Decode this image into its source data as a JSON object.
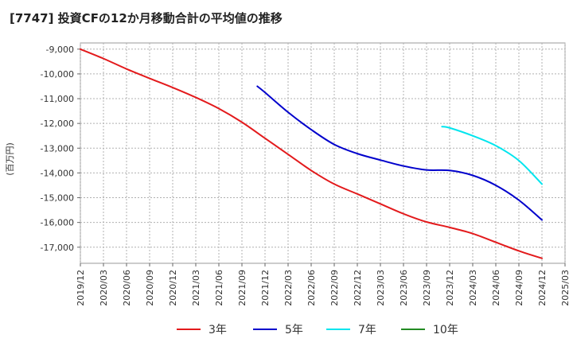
{
  "chart_data": {
    "type": "line",
    "title": "[7747]  投資CFの12か月移動合計の平均値の推移",
    "ylabel": "(百万円)",
    "xlabel": "",
    "ylim": [
      -17650,
      -8750
    ],
    "yticks": [
      -9000,
      -10000,
      -11000,
      -12000,
      -13000,
      -14000,
      -15000,
      -16000,
      -17000
    ],
    "ytick_labels": [
      "-9,000",
      "-10,000",
      "-11,000",
      "-12,000",
      "-13,000",
      "-14,000",
      "-15,000",
      "-16,000",
      "-17,000"
    ],
    "x_ticks": [
      "2019/12",
      "2020/03",
      "2020/06",
      "2020/09",
      "2020/12",
      "2021/03",
      "2021/06",
      "2021/09",
      "2021/12",
      "2022/03",
      "2022/06",
      "2022/09",
      "2022/12",
      "2023/03",
      "2023/06",
      "2023/09",
      "2023/12",
      "2024/03",
      "2024/06",
      "2024/09",
      "2024/12",
      "2025/03"
    ],
    "grid": true,
    "legend_position": "bottom",
    "series": [
      {
        "name": "3年",
        "color": "#e31a1c",
        "points": [
          [
            "2019/12",
            -9000
          ],
          [
            "2020/03",
            -9380
          ],
          [
            "2020/06",
            -9800
          ],
          [
            "2020/09",
            -10180
          ],
          [
            "2020/12",
            -10550
          ],
          [
            "2021/03",
            -10950
          ],
          [
            "2021/06",
            -11400
          ],
          [
            "2021/09",
            -11950
          ],
          [
            "2021/12",
            -12600
          ],
          [
            "2022/03",
            -13250
          ],
          [
            "2022/06",
            -13900
          ],
          [
            "2022/09",
            -14450
          ],
          [
            "2022/12",
            -14850
          ],
          [
            "2023/03",
            -15250
          ],
          [
            "2023/06",
            -15650
          ],
          [
            "2023/09",
            -15980
          ],
          [
            "2023/12",
            -16200
          ],
          [
            "2024/03",
            -16450
          ],
          [
            "2024/06",
            -16800
          ],
          [
            "2024/09",
            -17150
          ],
          [
            "2024/12",
            -17450
          ]
        ]
      },
      {
        "name": "5年",
        "color": "#0000cc",
        "points": [
          [
            "2021/11",
            -10500
          ],
          [
            "2021/12",
            -10750
          ],
          [
            "2022/03",
            -11550
          ],
          [
            "2022/06",
            -12250
          ],
          [
            "2022/09",
            -12850
          ],
          [
            "2022/12",
            -13220
          ],
          [
            "2023/03",
            -13480
          ],
          [
            "2023/06",
            -13720
          ],
          [
            "2023/09",
            -13880
          ],
          [
            "2023/12",
            -13900
          ],
          [
            "2024/03",
            -14100
          ],
          [
            "2024/06",
            -14500
          ],
          [
            "2024/09",
            -15100
          ],
          [
            "2024/12",
            -15900
          ]
        ]
      },
      {
        "name": "7年",
        "color": "#00e5ee",
        "points": [
          [
            "2023/11",
            -12130
          ],
          [
            "2023/12",
            -12180
          ],
          [
            "2024/03",
            -12500
          ],
          [
            "2024/06",
            -12900
          ],
          [
            "2024/09",
            -13500
          ],
          [
            "2024/12",
            -14450
          ]
        ]
      },
      {
        "name": "10年",
        "color": "#228b22",
        "points": []
      }
    ]
  }
}
